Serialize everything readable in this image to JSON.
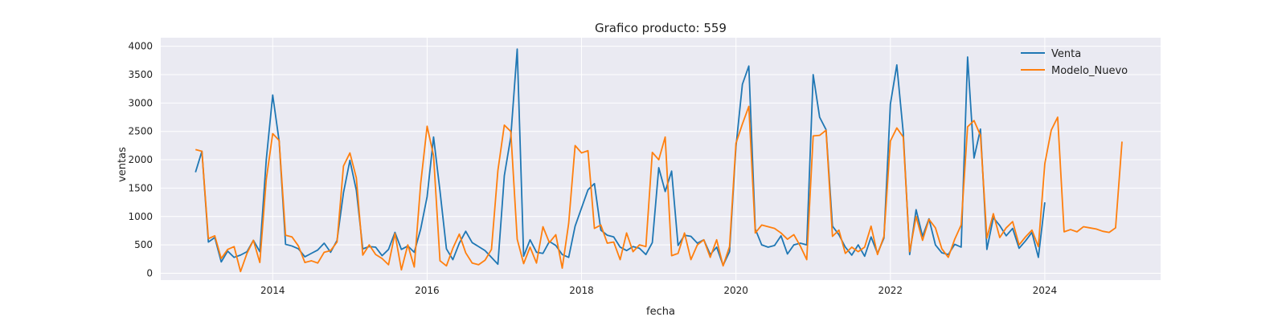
{
  "chart_data": {
    "type": "line",
    "title": "Grafico producto: 559",
    "xlabel": "fecha",
    "ylabel": "ventas",
    "xlim": [
      2012.55,
      2025.5
    ],
    "ylim": [
      -120,
      4150
    ],
    "x_ticks": [
      2014,
      2016,
      2018,
      2020,
      2022,
      2024
    ],
    "y_ticks": [
      0,
      500,
      1000,
      1500,
      2000,
      2500,
      3000,
      3500,
      4000
    ],
    "grid": true,
    "legend": "top-right",
    "series": [
      {
        "name": "Venta",
        "color": "#1f77b4",
        "start": "2013-01",
        "values": [
          1780,
          2150,
          550,
          630,
          200,
          390,
          280,
          320,
          380,
          580,
          380,
          2000,
          3140,
          2330,
          510,
          480,
          430,
          290,
          350,
          410,
          530,
          370,
          580,
          1420,
          1990,
          1460,
          430,
          470,
          460,
          310,
          420,
          720,
          420,
          480,
          370,
          780,
          1350,
          2400,
          1450,
          430,
          240,
          530,
          740,
          540,
          470,
          400,
          280,
          160,
          1720,
          2400,
          3950,
          300,
          590,
          370,
          350,
          560,
          490,
          330,
          280,
          830,
          1150,
          1470,
          1580,
          760,
          670,
          640,
          460,
          400,
          470,
          440,
          330,
          540,
          1860,
          1440,
          1800,
          490,
          670,
          650,
          530,
          590,
          330,
          460,
          140,
          380,
          2230,
          3330,
          3650,
          780,
          500,
          460,
          490,
          660,
          340,
          500,
          530,
          500,
          3500,
          2750,
          2530,
          830,
          680,
          460,
          320,
          500,
          300,
          640,
          350,
          620,
          2980,
          3670,
          2480,
          330,
          1120,
          650,
          960,
          500,
          360,
          330,
          510,
          460,
          3810,
          2030,
          2540,
          420,
          980,
          840,
          660,
          790,
          440,
          570,
          720,
          280,
          1250
        ]
      },
      {
        "name": "Modelo_Nuevo",
        "color": "#ff7f0e",
        "start": "2013-01",
        "values": [
          2180,
          2150,
          610,
          660,
          260,
          420,
          470,
          30,
          350,
          580,
          190,
          1650,
          2460,
          2340,
          670,
          640,
          480,
          190,
          220,
          180,
          370,
          400,
          550,
          1890,
          2120,
          1680,
          320,
          500,
          330,
          260,
          150,
          700,
          60,
          500,
          110,
          1580,
          2590,
          2070,
          220,
          130,
          440,
          690,
          360,
          180,
          150,
          230,
          420,
          1810,
          2610,
          2500,
          600,
          170,
          460,
          180,
          820,
          540,
          680,
          90,
          880,
          2250,
          2120,
          2160,
          790,
          850,
          530,
          550,
          240,
          710,
          380,
          500,
          470,
          2130,
          2000,
          2400,
          310,
          350,
          710,
          240,
          500,
          590,
          280,
          590,
          130,
          470,
          2290,
          2630,
          2940,
          710,
          850,
          820,
          790,
          710,
          600,
          680,
          480,
          240,
          2420,
          2430,
          2520,
          650,
          760,
          350,
          460,
          380,
          460,
          830,
          330,
          650,
          2330,
          2560,
          2400,
          380,
          1000,
          580,
          950,
          800,
          430,
          280,
          600,
          850,
          2580,
          2690,
          2430,
          620,
          1050,
          630,
          800,
          910,
          500,
          640,
          760,
          470,
          1930,
          2520,
          2750,
          730,
          770,
          730,
          820,
          800,
          780,
          740,
          720,
          800,
          2320
        ]
      }
    ]
  }
}
